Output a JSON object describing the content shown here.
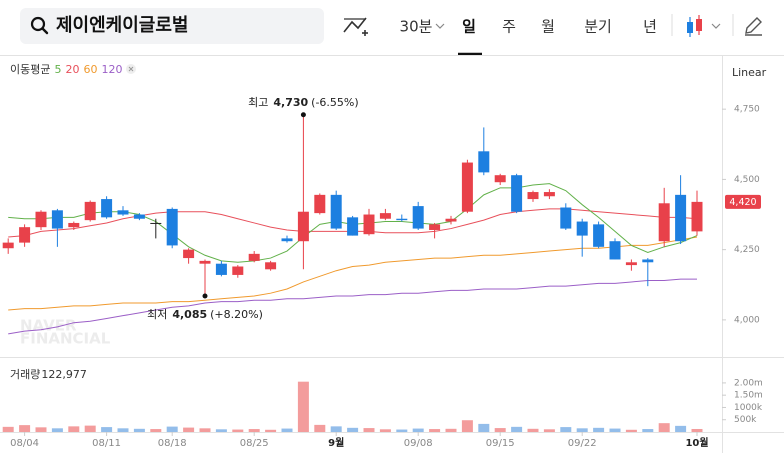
{
  "toolbar": {
    "search": "제이엔케이글로벌",
    "intervals": [
      "30분",
      "일",
      "주",
      "월",
      "분기",
      "년"
    ]
  },
  "chart_data": {
    "type": "candlestick",
    "legend_title": "이동평균",
    "scale": "Linear",
    "watermark": [
      "NAVER",
      "FINANCIAL"
    ],
    "categories": [
      null,
      "08/04",
      null,
      null,
      null,
      null,
      "08/11",
      null,
      null,
      null,
      "08/18",
      null,
      null,
      null,
      null,
      "08/25",
      null,
      null,
      null,
      null,
      "9월",
      null,
      null,
      null,
      null,
      "09/08",
      null,
      null,
      null,
      null,
      "09/15",
      null,
      null,
      null,
      null,
      "09/22",
      null,
      null,
      null,
      null,
      null,
      null,
      "10월"
    ],
    "open": [
      4255,
      4275,
      4330,
      4390,
      4330,
      4355,
      4430,
      4390,
      4375,
      4345,
      4395,
      4220,
      4200,
      4200,
      4160,
      4210,
      4180,
      4290,
      4280,
      4380,
      4445,
      4365,
      4305,
      4360,
      4360,
      4405,
      4320,
      4350,
      4385,
      4600,
      4490,
      4515,
      4430,
      4440,
      4400,
      4350,
      4340,
      4280,
      4195,
      4215,
      4280,
      4445,
      4315
    ],
    "high": [
      4290,
      4340,
      4390,
      4395,
      4350,
      4425,
      4440,
      4405,
      4380,
      4360,
      4400,
      4255,
      4215,
      4210,
      4195,
      4245,
      4210,
      4300,
      4730,
      4450,
      4460,
      4370,
      4395,
      4395,
      4375,
      4420,
      4345,
      4370,
      4570,
      4685,
      4520,
      4520,
      4460,
      4465,
      4415,
      4360,
      4350,
      4290,
      4215,
      4220,
      4470,
      4515,
      4460
    ],
    "low": [
      4235,
      4260,
      4320,
      4260,
      4320,
      4350,
      4360,
      4370,
      4355,
      4290,
      4255,
      4200,
      4085,
      4155,
      4150,
      4205,
      4175,
      4275,
      4180,
      4375,
      4320,
      4300,
      4300,
      4355,
      4350,
      4320,
      4290,
      4340,
      4380,
      4515,
      4480,
      4380,
      4420,
      4430,
      4320,
      4225,
      4255,
      4215,
      4175,
      4120,
      4260,
      4270,
      4300
    ],
    "close": [
      4275,
      4330,
      4385,
      4325,
      4345,
      4420,
      4365,
      4375,
      4360,
      4345,
      4265,
      4250,
      4210,
      4160,
      4190,
      4235,
      4205,
      4280,
      4385,
      4445,
      4325,
      4300,
      4375,
      4380,
      4355,
      4325,
      4340,
      4360,
      4560,
      4525,
      4515,
      4385,
      4455,
      4455,
      4325,
      4300,
      4260,
      4215,
      4205,
      4205,
      4415,
      4280,
      4420
    ],
    "up_color": "#e8414a",
    "down_color": "#1d7fe0",
    "flat_color": "#222222",
    "series": [
      {
        "name": "5",
        "color": "#62b14a",
        "values": [
          4365,
          4360,
          4360,
          4365,
          4365,
          4380,
          4385,
          4385,
          4375,
          4350,
          4305,
          4260,
          4230,
          4210,
          4205,
          4210,
          4220,
          4245,
          4295,
          4340,
          4350,
          4340,
          4345,
          4350,
          4350,
          4345,
          4340,
          4350,
          4395,
          4445,
          4470,
          4470,
          4480,
          4485,
          4460,
          4410,
          4365,
          4315,
          4265,
          4240,
          4260,
          4275,
          4300
        ]
      },
      {
        "name": "20",
        "color": "#e8505b",
        "values": [
          4295,
          4300,
          4315,
          4320,
          4325,
          4335,
          4345,
          4360,
          4370,
          4380,
          4385,
          4385,
          4385,
          4375,
          4360,
          4345,
          4330,
          4320,
          4315,
          4315,
          4315,
          4315,
          4315,
          4310,
          4310,
          4310,
          4315,
          4325,
          4340,
          4355,
          4375,
          4385,
          4390,
          4395,
          4395,
          4390,
          4385,
          4380,
          4375,
          4370,
          4365,
          4365,
          4360
        ]
      },
      {
        "name": "60",
        "color": "#f09a2e",
        "values": [
          4035,
          4040,
          4040,
          4045,
          4050,
          4050,
          4055,
          4060,
          4060,
          4060,
          4065,
          4065,
          4070,
          4075,
          4080,
          4085,
          4095,
          4110,
          4135,
          4155,
          4175,
          4190,
          4195,
          4205,
          4210,
          4215,
          4220,
          4220,
          4225,
          4230,
          4230,
          4235,
          4240,
          4245,
          4250,
          4255,
          4255,
          4260,
          4265,
          4265,
          4275,
          4285,
          4295
        ]
      },
      {
        "name": "120",
        "color": "#9b5fc7",
        "values": [
          3950,
          3960,
          3965,
          3975,
          3990,
          3995,
          4005,
          4015,
          4025,
          4035,
          4045,
          4050,
          4060,
          4065,
          4065,
          4070,
          4070,
          4075,
          4075,
          4080,
          4085,
          4085,
          4090,
          4090,
          4095,
          4095,
          4100,
          4105,
          4105,
          4110,
          4110,
          4110,
          4115,
          4120,
          4120,
          4125,
          4130,
          4130,
          4135,
          4140,
          4140,
          4145,
          4145
        ]
      }
    ],
    "ylim": [
      3875,
      4925
    ],
    "yticks": [
      {
        "value": 4000,
        "label": "4,000"
      },
      {
        "value": 4250,
        "label": "4,250"
      },
      {
        "value": 4500,
        "label": "4,500"
      },
      {
        "value": 4750,
        "label": "4,750"
      }
    ],
    "last_price": {
      "value": 4420,
      "label": "4,420"
    },
    "high_annotation": {
      "title": "최고",
      "value": 4730,
      "label": "4,730",
      "change": "(-6.55%)"
    },
    "low_annotation": {
      "title": "최저",
      "value": 4085,
      "label": "4,085",
      "change": "(+8.20%)"
    },
    "volume": {
      "title": "거래량",
      "values": [
        210000,
        280000,
        190000,
        150000,
        230000,
        260000,
        200000,
        150000,
        130000,
        120000,
        220000,
        180000,
        150000,
        110000,
        100000,
        120000,
        90000,
        140000,
        2050000,
        290000,
        230000,
        170000,
        160000,
        110000,
        100000,
        140000,
        120000,
        130000,
        480000,
        330000,
        160000,
        210000,
        130000,
        110000,
        200000,
        150000,
        170000,
        140000,
        90000,
        120000,
        360000,
        250000,
        122977
      ],
      "latest": {
        "value": 122977,
        "label": "122,977"
      },
      "ylim": [
        0,
        2200000
      ],
      "yticks": [
        {
          "value": 500000,
          "label": "500k"
        },
        {
          "value": 1000000,
          "label": "1000k"
        },
        {
          "value": 1500000,
          "label": "1.50m"
        },
        {
          "value": 2000000,
          "label": "2.00m"
        }
      ],
      "up_color": "#f39c9c",
      "down_color": "#93bdea"
    }
  }
}
